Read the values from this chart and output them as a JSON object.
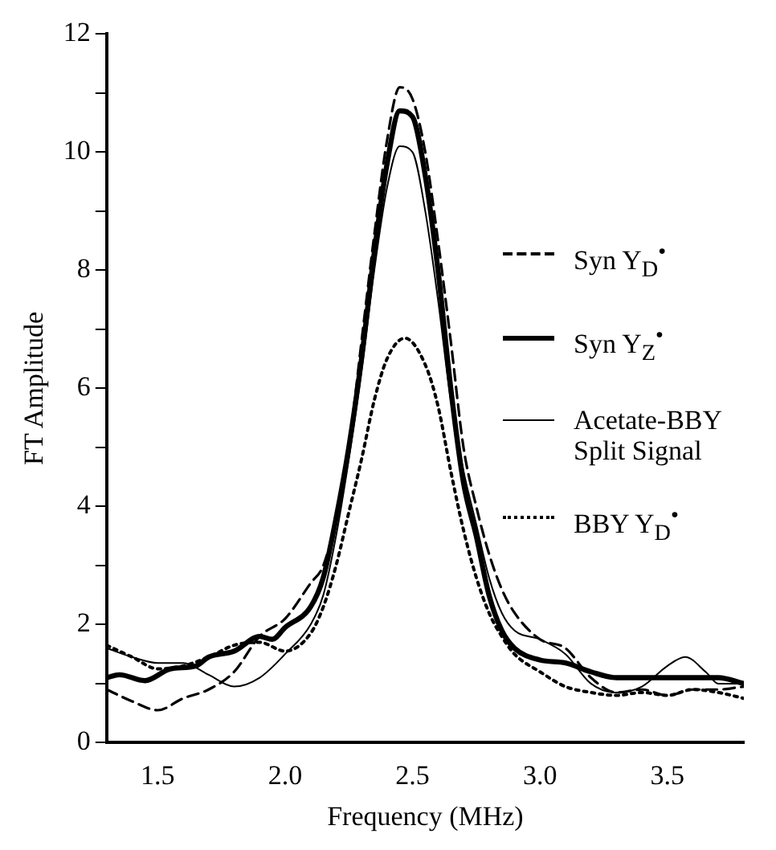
{
  "chart_data": {
    "type": "line",
    "xlabel": "Frequency (MHz)",
    "ylabel": "FT Amplitude",
    "xlim": [
      1.3,
      3.8
    ],
    "ylim": [
      0,
      12
    ],
    "xticks": [
      1.5,
      {
        "value": 2,
        "label": "2.0"
      },
      2.5,
      {
        "value": 3,
        "label": "3.0"
      },
      3.5
    ],
    "yticks": [
      0,
      {
        "value": 1,
        "label": null
      },
      2,
      {
        "value": 3,
        "label": null
      },
      4,
      {
        "value": 5,
        "label": null
      },
      6,
      {
        "value": 7,
        "label": null
      },
      8,
      {
        "value": 9,
        "label": null
      },
      10,
      {
        "value": 11,
        "label": null
      },
      12
    ],
    "grid": false,
    "legend": "right",
    "marker": "none",
    "series": [
      {
        "name": "Syn Y$_{D}$$^{•}$",
        "color": "#000000",
        "line_style": "dashed",
        "x": [
          1.3,
          1.4,
          1.5,
          1.6,
          1.7,
          1.8,
          1.9,
          2.0,
          2.1,
          2.15,
          2.2,
          2.25,
          2.3,
          2.35,
          2.4,
          2.45,
          2.5,
          2.55,
          2.6,
          2.65,
          2.7,
          2.75,
          2.8,
          2.85,
          2.9,
          3.0,
          3.1,
          3.2,
          3.3,
          3.4,
          3.5,
          3.6,
          3.7,
          3.8
        ],
        "values": [
          0.9,
          0.7,
          0.55,
          0.75,
          0.9,
          1.2,
          1.8,
          2.1,
          2.7,
          3.0,
          3.8,
          5.0,
          6.8,
          8.6,
          10.2,
          11.1,
          10.9,
          10.0,
          8.5,
          6.8,
          5.0,
          4.0,
          3.2,
          2.6,
          2.2,
          1.75,
          1.6,
          1.1,
          0.85,
          0.9,
          0.8,
          0.9,
          0.9,
          0.95
        ]
      },
      {
        "name": "Syn Y$_{Z}$$^{•}$",
        "color": "#000000",
        "line_style": "solid",
        "x": [
          1.3,
          1.35,
          1.45,
          1.55,
          1.65,
          1.7,
          1.8,
          1.9,
          1.95,
          2.0,
          2.1,
          2.15,
          2.2,
          2.25,
          2.3,
          2.35,
          2.4,
          2.45,
          2.5,
          2.55,
          2.6,
          2.65,
          2.7,
          2.75,
          2.8,
          2.85,
          2.9,
          3.0,
          3.1,
          3.2,
          3.3,
          3.4,
          3.5,
          3.6,
          3.7,
          3.8
        ],
        "values": [
          1.1,
          1.15,
          1.05,
          1.25,
          1.3,
          1.45,
          1.55,
          1.8,
          1.75,
          1.95,
          2.3,
          2.8,
          3.8,
          5.0,
          6.5,
          8.3,
          9.8,
          10.7,
          10.6,
          9.6,
          8.0,
          6.0,
          4.4,
          3.5,
          2.5,
          1.9,
          1.6,
          1.4,
          1.35,
          1.2,
          1.1,
          1.1,
          1.1,
          1.1,
          1.1,
          1.0
        ]
      },
      {
        "name": "Acetate-BBY Split Signal",
        "color": "#000000",
        "line_style": "solid",
        "x": [
          1.3,
          1.4,
          1.5,
          1.6,
          1.7,
          1.8,
          1.9,
          2.0,
          2.1,
          2.15,
          2.2,
          2.25,
          2.3,
          2.35,
          2.4,
          2.45,
          2.5,
          2.55,
          2.6,
          2.65,
          2.7,
          2.75,
          2.8,
          2.85,
          2.9,
          3.0,
          3.1,
          3.2,
          3.3,
          3.4,
          3.5,
          3.57,
          3.65,
          3.7,
          3.8
        ],
        "values": [
          1.6,
          1.45,
          1.35,
          1.35,
          1.15,
          0.95,
          1.1,
          1.5,
          2.0,
          2.5,
          3.5,
          4.8,
          6.3,
          8.0,
          9.4,
          10.1,
          10.0,
          9.0,
          7.5,
          5.8,
          4.6,
          3.7,
          2.8,
          2.2,
          1.9,
          1.75,
          1.5,
          1.0,
          0.85,
          0.95,
          1.3,
          1.45,
          1.2,
          1.0,
          1.0
        ]
      },
      {
        "name": "BBY Y$_{D}$$^{•}$",
        "color": "#000000",
        "line_style": "dotted",
        "x": [
          1.3,
          1.4,
          1.5,
          1.6,
          1.7,
          1.8,
          1.9,
          2.0,
          2.1,
          2.15,
          2.2,
          2.25,
          2.3,
          2.35,
          2.4,
          2.47,
          2.55,
          2.6,
          2.65,
          2.7,
          2.75,
          2.8,
          2.85,
          2.9,
          3.0,
          3.1,
          3.2,
          3.3,
          3.4,
          3.5,
          3.6,
          3.7,
          3.8
        ],
        "values": [
          1.65,
          1.45,
          1.25,
          1.3,
          1.45,
          1.65,
          1.7,
          1.55,
          1.85,
          2.3,
          3.0,
          3.9,
          4.8,
          5.8,
          6.5,
          6.85,
          6.4,
          5.7,
          4.6,
          3.6,
          2.8,
          2.2,
          1.8,
          1.5,
          1.2,
          0.95,
          0.85,
          0.8,
          0.85,
          0.8,
          0.9,
          0.85,
          0.75
        ]
      }
    ]
  }
}
